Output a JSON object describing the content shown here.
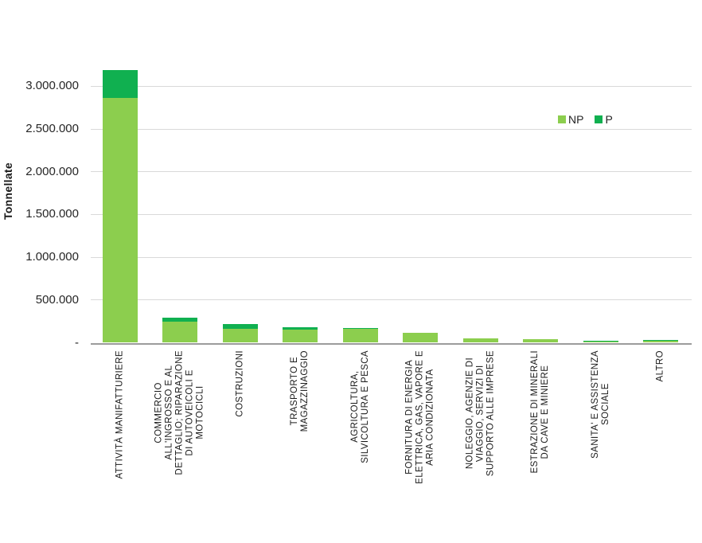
{
  "chart_data": {
    "type": "bar",
    "stacked": true,
    "title": "",
    "xlabel": "",
    "ylabel": "Tonnellate",
    "grid": true,
    "legend_position": "top-right",
    "ylim": [
      0,
      3200000
    ],
    "y_ticks": [
      {
        "label": "3.000.000",
        "value": 3000000
      },
      {
        "label": "2.500.000",
        "value": 2500000
      },
      {
        "label": "2.000.000",
        "value": 2000000
      },
      {
        "label": "1.500.000",
        "value": 1500000
      },
      {
        "label": "1.000.000",
        "value": 1000000
      },
      {
        "label": "500.000",
        "value": 500000
      },
      {
        "label": "-",
        "value": 0
      }
    ],
    "categories": [
      "ATTIVITÀ MANIFATTURIERE",
      "COMMERCIO\nALL'INGROSSO E AL\nDETTAGLIO; RIPARAZIONE\nDI AUTOVEICOLI E\nMOTOCICLI",
      "COSTRUZIONI",
      "TRASPORTO E\nMAGAZZINAGGIO",
      "AGRICOLTURA,\nSILVICOLTURA E PESCA",
      "FORNITURA DI ENERGIA\nELETTRICA, GAS, VAPORE E\nARIA CONDIZIONATA",
      "NOLEGGIO, AGENZIE DI\nVIAGGIO, SERVIZI DI\nSUPPORTO ALLE IMPRESE",
      "ESTRAZIONE DI MINERALI\nDA CAVE E MINIERE",
      "SANITA' E ASSISTENZA\nSOCIALE",
      "ALTRO"
    ],
    "series": [
      {
        "name": "NP",
        "color": "#8cce4e",
        "values": [
          2865000,
          248000,
          165000,
          155000,
          165000,
          115000,
          52000,
          43000,
          13000,
          23000
        ]
      },
      {
        "name": "P",
        "color": "#10b050",
        "values": [
          320000,
          48000,
          53000,
          31000,
          9000,
          0,
          0,
          0,
          9000,
          6000
        ]
      }
    ]
  }
}
